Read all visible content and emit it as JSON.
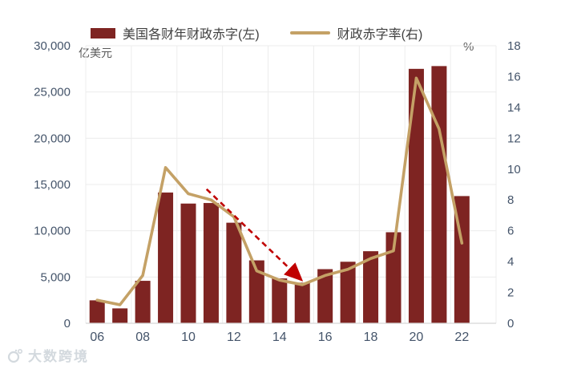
{
  "legend": {
    "bars_label": "美国各财年财政赤字(左)",
    "line_label": "财政赤字率(右)"
  },
  "axes": {
    "left_unit": "亿美元",
    "right_unit": "%",
    "left_ticks": [
      "0",
      "5,000",
      "10,000",
      "15,000",
      "20,000",
      "25,000",
      "30,000"
    ],
    "right_ticks": [
      "0",
      "2",
      "4",
      "6",
      "8",
      "10",
      "12",
      "14",
      "16",
      "18"
    ],
    "x_ticks": [
      "06",
      "08",
      "10",
      "12",
      "14",
      "16",
      "18",
      "20",
      "22"
    ]
  },
  "watermark": {
    "text": "大数跨境"
  },
  "colors": {
    "bar": "#7e2422",
    "line": "#c4a166",
    "arrow": "#c00000",
    "grid": "#ececec",
    "axis_line": "#d6d6d6",
    "tick_text": "#44546a",
    "legend_text": "#3f3f3f",
    "unit_text": "#595959",
    "watermark": "#d3d9de",
    "background": "#ffffff"
  },
  "chart_data": {
    "type": "bar",
    "title": "",
    "categories": [
      "06",
      "07",
      "08",
      "09",
      "10",
      "11",
      "12",
      "13",
      "14",
      "15",
      "16",
      "17",
      "18",
      "19",
      "20",
      "21",
      "22"
    ],
    "series": [
      {
        "name": "美国各财年财政赤字(左)",
        "type": "bar",
        "axis": "left",
        "values": [
          2480,
          1610,
          4590,
          14130,
          12940,
          13000,
          10870,
          6800,
          4850,
          4390,
          5850,
          6650,
          7790,
          9840,
          27500,
          27800,
          13750
        ]
      },
      {
        "name": "财政赤字率(右)",
        "type": "line",
        "axis": "right",
        "values": [
          1.5,
          1.2,
          3.1,
          10.1,
          8.4,
          8.0,
          6.9,
          3.4,
          2.8,
          2.5,
          3.1,
          3.5,
          4.2,
          4.7,
          15.9,
          12.6,
          5.2
        ]
      }
    ],
    "left_axis": {
      "label": "亿美元",
      "min": 0,
      "max": 30000,
      "step": 5000
    },
    "right_axis": {
      "label": "%",
      "min": 0,
      "max": 18,
      "step": 2
    },
    "x_label_interval": 2,
    "grid": true,
    "legend_position": "top",
    "annotation": {
      "type": "dashed-arrow",
      "color": "#c00000",
      "axis": "right",
      "from": {
        "xi": 4.8,
        "value": 8.7
      },
      "to": {
        "xi": 8.9,
        "value": 2.9
      }
    }
  }
}
